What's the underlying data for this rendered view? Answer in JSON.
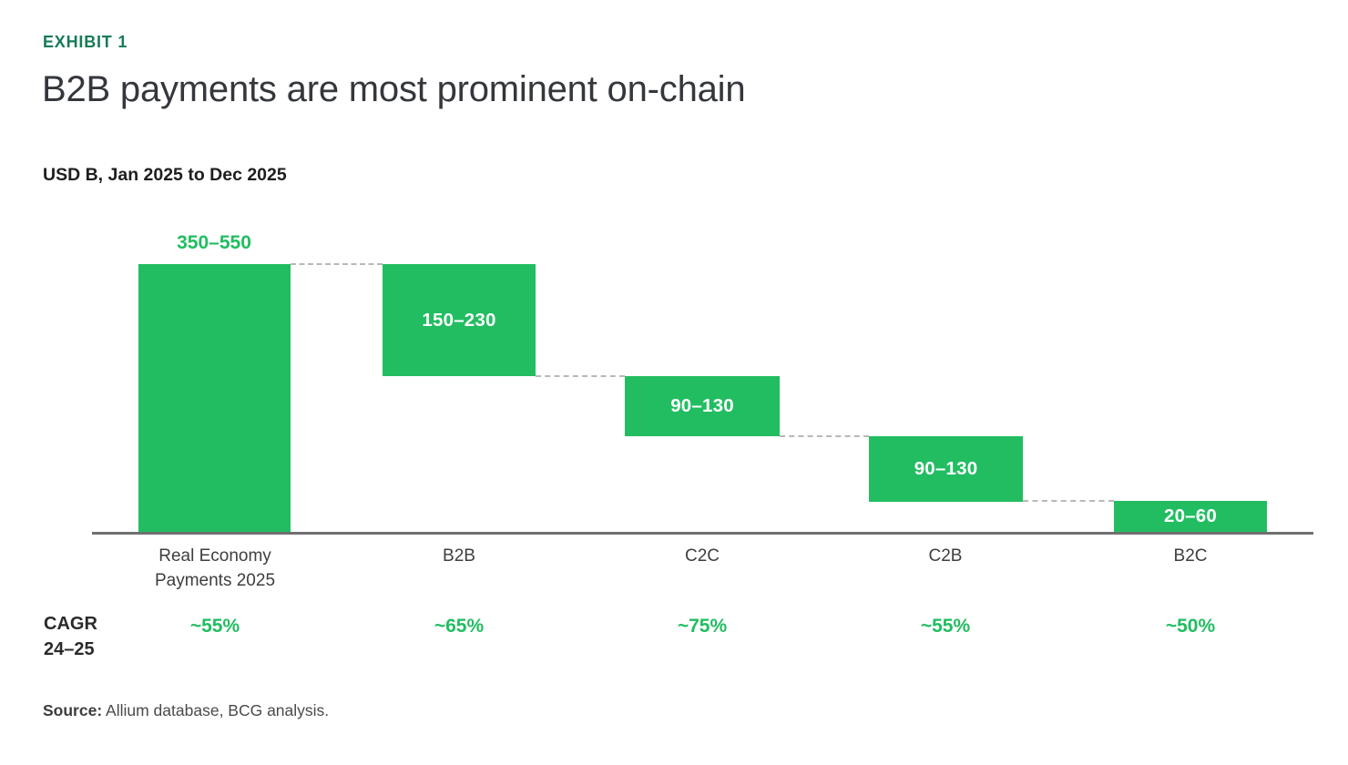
{
  "exhibit_label": "EXHIBIT 1",
  "title": "B2B payments are most prominent on-chain",
  "subtitle": "USD B, Jan 2025 to Dec 2025",
  "colors": {
    "bar_green": "#22bd61",
    "exhibit_green": "#177B57",
    "title_gray": "#34373c",
    "axis_gray": "#6f6f6f",
    "connector_gray": "#b8b8b8"
  },
  "chart_data": {
    "type": "bar",
    "subtype": "waterfall",
    "title": "B2B payments are most prominent on-chain",
    "unit_label": "USD B, Jan 2025 to Dec 2025",
    "ylabel": "",
    "xlabel": "",
    "grid": false,
    "legend": false,
    "ylim": [
      0,
      550
    ],
    "categories": [
      "Real Economy Payments 2025",
      "B2B",
      "C2C",
      "C2B",
      "B2C"
    ],
    "bars": [
      {
        "category": "Real Economy Payments 2025",
        "range_label": "350–550",
        "low": 350,
        "high": 550,
        "cumulative_from": 0,
        "cumulative_to": 450,
        "label_position": "above",
        "cagr": "~55%"
      },
      {
        "category": "B2B",
        "range_label": "150–230",
        "low": 150,
        "high": 230,
        "cumulative_from": 450,
        "cumulative_to": 260,
        "label_position": "inside",
        "cagr": "~65%"
      },
      {
        "category": "C2C",
        "range_label": "90–130",
        "low": 90,
        "high": 130,
        "cumulative_from": 260,
        "cumulative_to": 150,
        "label_position": "inside",
        "cagr": "~75%"
      },
      {
        "category": "C2B",
        "range_label": "90–130",
        "low": 90,
        "high": 130,
        "cumulative_from": 150,
        "cumulative_to": 40,
        "label_position": "inside",
        "cagr": "~55%"
      },
      {
        "category": "B2C",
        "range_label": "20–60",
        "low": 20,
        "high": 60,
        "cumulative_from": 40,
        "cumulative_to": 0,
        "label_position": "inside",
        "cagr": "~50%"
      }
    ],
    "cagr_row": {
      "header_line1": "CAGR",
      "header_line2": "24–25",
      "values": [
        "~55%",
        "~65%",
        "~75%",
        "~55%",
        "~50%"
      ]
    }
  },
  "source": {
    "prefix": "Source:",
    "text": " Allium database, BCG analysis."
  }
}
